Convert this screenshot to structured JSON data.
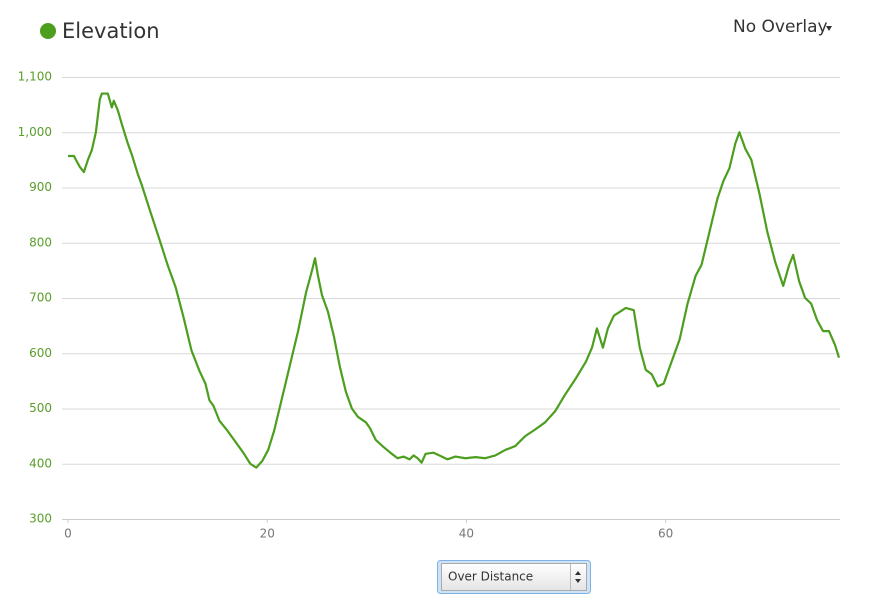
{
  "chart_data": {
    "type": "line",
    "x": [
      0,
      0.6,
      0.8,
      1.2,
      1.6,
      2.0,
      2.4,
      2.8,
      3.2,
      3.4,
      4.0,
      4.4,
      4.6,
      5.0,
      5.4,
      6.0,
      6.4,
      7.0,
      7.4,
      8.2,
      9.2,
      10.0,
      10.8,
      11.6,
      12.4,
      13.2,
      13.8,
      14.2,
      14.6,
      15.2,
      16.0,
      16.8,
      17.6,
      18.3,
      18.9,
      19.5,
      20.1,
      20.7,
      21.5,
      22.3,
      23.1,
      23.9,
      24.5,
      24.8,
      25.1,
      25.5,
      26.1,
      26.7,
      27.3,
      27.9,
      28.5,
      29.1,
      29.9,
      30.3,
      30.9,
      31.7,
      32.5,
      33.1,
      33.7,
      34.3,
      34.7,
      35.1,
      35.5,
      35.9,
      36.7,
      37.3,
      38.1,
      38.9,
      39.9,
      40.9,
      41.9,
      42.9,
      43.9,
      44.9,
      45.9,
      46.9,
      47.9,
      48.9,
      49.9,
      51.0,
      52.0,
      52.6,
      53.1,
      53.7,
      54.2,
      54.8,
      55.4,
      56.0,
      56.8,
      57.4,
      58.0,
      58.6,
      59.2,
      59.8,
      60.6,
      61.4,
      62.2,
      63.0,
      63.6,
      64.4,
      65.2,
      65.8,
      66.4,
      67.0,
      67.4,
      68.0,
      68.6,
      69.4,
      70.2,
      71.0,
      71.8,
      72.4,
      72.8,
      73.4,
      74.0,
      74.6,
      75.2,
      75.8,
      76.4,
      77.0,
      77.4
    ],
    "series": [
      {
        "name": "Elevation",
        "color": "#4c9e1e",
        "values": [
          957,
          957,
          950,
          937,
          928,
          950,
          968,
          1000,
          1060,
          1070,
          1070,
          1045,
          1057,
          1040,
          1015,
          980,
          960,
          925,
          905,
          860,
          805,
          760,
          720,
          665,
          605,
          568,
          545,
          515,
          505,
          478,
          460,
          440,
          420,
          400,
          393,
          405,
          425,
          460,
          520,
          580,
          640,
          710,
          750,
          772,
          740,
          705,
          675,
          630,
          575,
          530,
          500,
          485,
          475,
          465,
          443,
          430,
          418,
          410,
          413,
          408,
          415,
          410,
          402,
          418,
          420,
          415,
          408,
          413,
          410,
          412,
          410,
          415,
          425,
          432,
          450,
          462,
          475,
          495,
          525,
          555,
          585,
          610,
          645,
          610,
          645,
          668,
          675,
          682,
          678,
          610,
          570,
          562,
          540,
          545,
          585,
          625,
          690,
          740,
          760,
          820,
          880,
          912,
          935,
          980,
          1000,
          970,
          950,
          890,
          820,
          765,
          722,
          760,
          778,
          730,
          700,
          690,
          660,
          640,
          640,
          615,
          592
        ]
      }
    ],
    "xlim": [
      -0.6,
      77.5
    ],
    "ylim": [
      300,
      1100
    ],
    "xticks": [
      0,
      20,
      40,
      60
    ],
    "yticks": [
      300,
      400,
      500,
      600,
      700,
      800,
      900,
      {
        "value": 1000,
        "label": "1,000"
      },
      {
        "value": 1100,
        "label": "1,100"
      }
    ],
    "grid": true
  },
  "controls": {
    "overlay": "No Overlay",
    "x_mode": "Over Distance"
  }
}
